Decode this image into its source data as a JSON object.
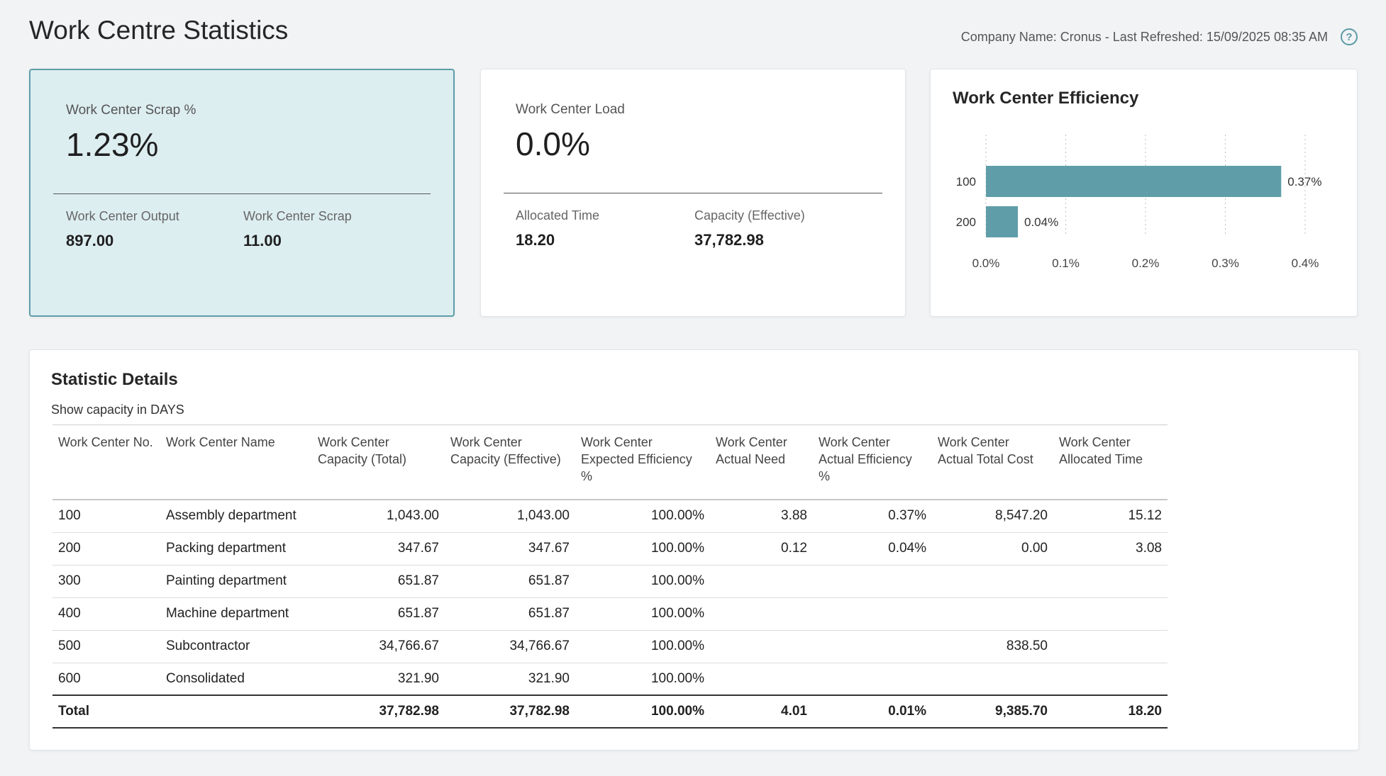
{
  "page": {
    "title": "Work Centre Statistics",
    "header_info": "Company Name: Cronus - Last Refreshed: 15/09/2025 08:35 AM"
  },
  "kpi_scrap": {
    "label": "Work Center Scrap %",
    "value": "1.23%",
    "sub1_label": "Work Center Output",
    "sub1_value": "897.00",
    "sub2_label": "Work Center Scrap",
    "sub2_value": "11.00"
  },
  "kpi_load": {
    "label": "Work Center Load",
    "value": "0.0%",
    "sub1_label": "Allocated Time",
    "sub1_value": "18.20",
    "sub2_label": "Capacity (Effective)",
    "sub2_value": "37,782.98"
  },
  "chart_data": {
    "type": "bar",
    "orientation": "horizontal",
    "title": "Work Center Efficiency",
    "categories": [
      "100",
      "200"
    ],
    "values": [
      0.37,
      0.04
    ],
    "value_labels": [
      "0.37%",
      "0.04%"
    ],
    "xlim": [
      0,
      0.4
    ],
    "x_ticks": [
      "0.0%",
      "0.1%",
      "0.2%",
      "0.3%",
      "0.4%"
    ],
    "grid": true,
    "bar_color": "#5f9ea8"
  },
  "details": {
    "title": "Statistic Details",
    "capacity_note": "Show capacity in DAYS",
    "columns": [
      [
        "Work Center No."
      ],
      [
        "Work Center Name"
      ],
      [
        "Work Center",
        "Capacity (Total)"
      ],
      [
        "Work Center",
        "Capacity (Effective)"
      ],
      [
        "Work Center",
        "Expected Efficiency %"
      ],
      [
        "Work Center",
        "Actual Need"
      ],
      [
        "Work Center",
        "Actual Efficiency %"
      ],
      [
        "Work Center",
        "Actual Total Cost"
      ],
      [
        "Work Center",
        "Allocated Time"
      ]
    ],
    "rows": [
      [
        "100",
        "Assembly department",
        "1,043.00",
        "1,043.00",
        "100.00%",
        "3.88",
        "0.37%",
        "8,547.20",
        "15.12"
      ],
      [
        "200",
        "Packing department",
        "347.67",
        "347.67",
        "100.00%",
        "0.12",
        "0.04%",
        "0.00",
        "3.08"
      ],
      [
        "300",
        "Painting department",
        "651.87",
        "651.87",
        "100.00%",
        "",
        "",
        "",
        ""
      ],
      [
        "400",
        "Machine department",
        "651.87",
        "651.87",
        "100.00%",
        "",
        "",
        "",
        ""
      ],
      [
        "500",
        "Subcontractor",
        "34,766.67",
        "34,766.67",
        "100.00%",
        "",
        "",
        "838.50",
        ""
      ],
      [
        "600",
        "Consolidated",
        "321.90",
        "321.90",
        "100.00%",
        "",
        "",
        "",
        ""
      ]
    ],
    "total": [
      "Total",
      "",
      "37,782.98",
      "37,782.98",
      "100.00%",
      "4.01",
      "0.01%",
      "9,385.70",
      "18.20"
    ]
  }
}
